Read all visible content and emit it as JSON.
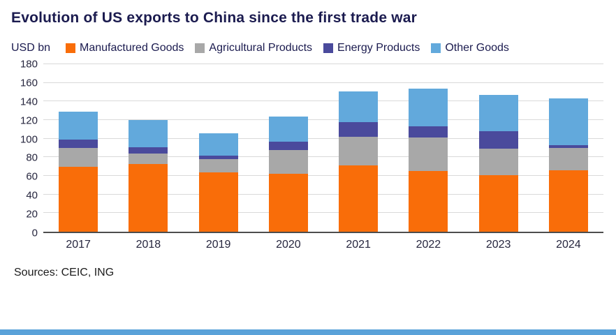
{
  "title": "Evolution of US exports to China since the first trade war",
  "sources": "Sources: CEIC, ING",
  "colors": {
    "title_text": "#1b1b4f",
    "axis_text": "#26263e",
    "gridline": "#d9d9d9",
    "footer_bar": "#5aa2d9"
  },
  "chart_data": {
    "type": "bar",
    "stacked": true,
    "title": "Evolution of US exports to China since the first trade war",
    "ylabel": "USD bn",
    "xlabel": "",
    "ylim": [
      0,
      180
    ],
    "ytick_step": 20,
    "grid": true,
    "legend_position": "top",
    "categories": [
      "2017",
      "2018",
      "2019",
      "2020",
      "2021",
      "2022",
      "2023",
      "2024"
    ],
    "series": [
      {
        "name": "Manufactured Goods",
        "color": "#f96d09",
        "values": [
          70,
          73,
          64,
          62,
          71,
          65,
          61,
          66
        ]
      },
      {
        "name": "Agricultural Products",
        "color": "#a8a8a8",
        "values": [
          20,
          11,
          14,
          26,
          31,
          36,
          28,
          24
        ]
      },
      {
        "name": "Energy Products",
        "color": "#4a4a9c",
        "values": [
          9,
          7,
          4,
          9,
          16,
          12,
          19,
          3
        ]
      },
      {
        "name": "Other Goods",
        "color": "#62a9dc",
        "values": [
          30,
          29,
          24,
          27,
          33,
          41,
          39,
          50
        ]
      }
    ]
  }
}
